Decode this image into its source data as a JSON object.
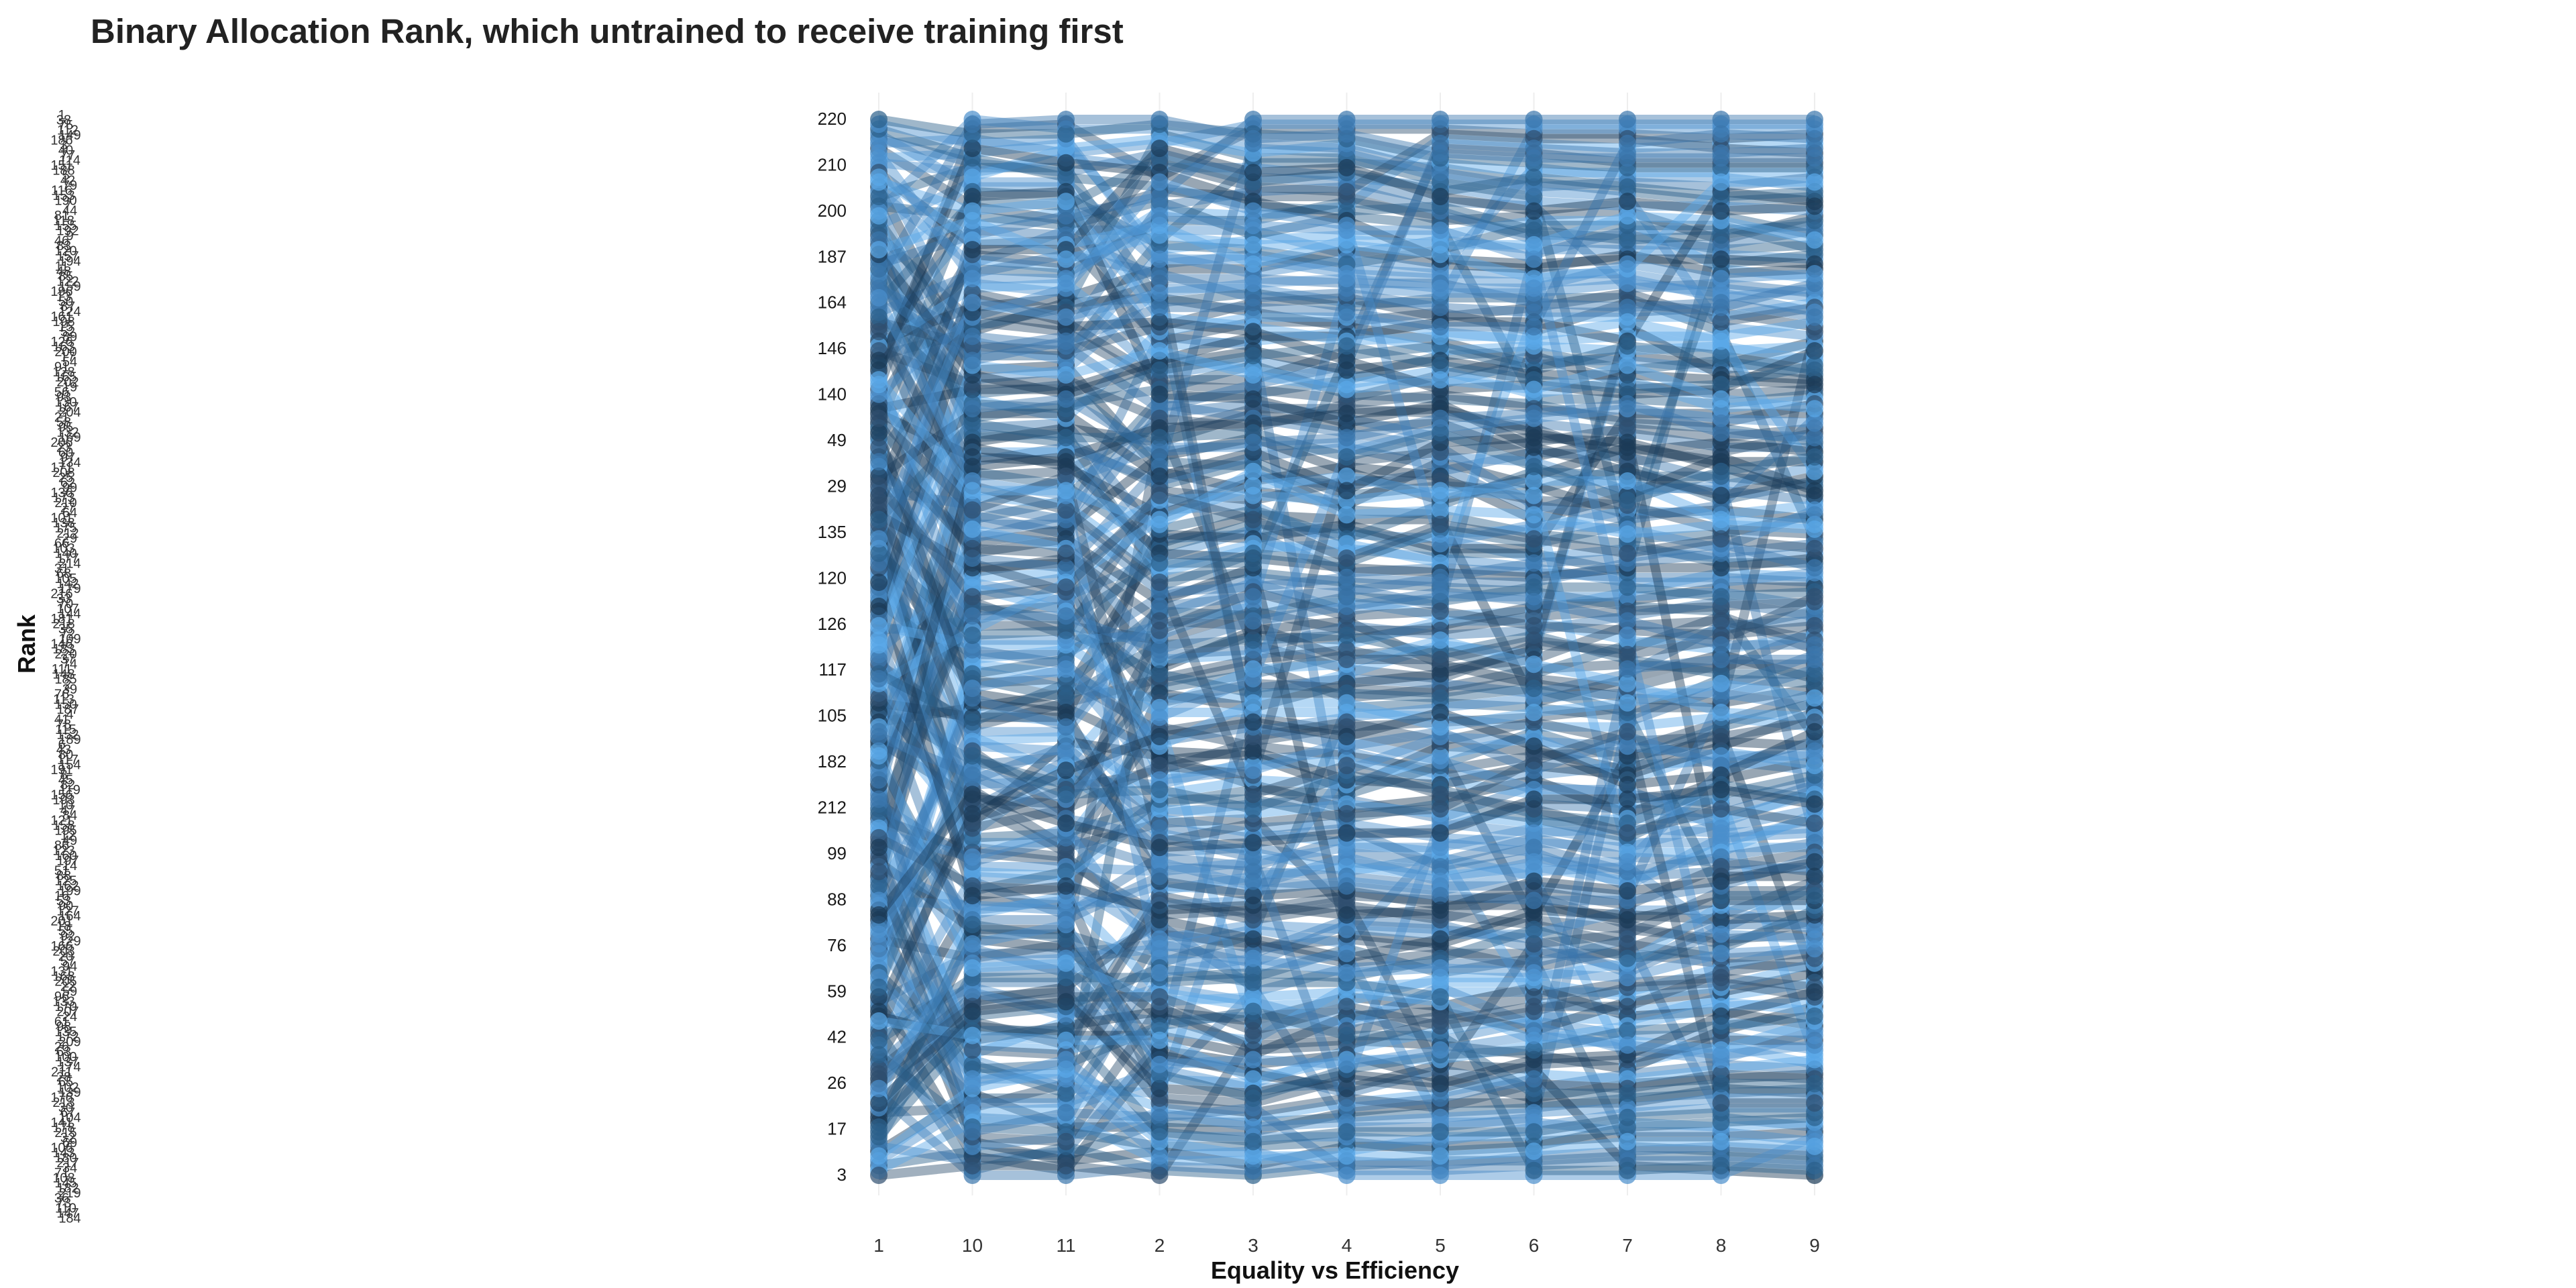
{
  "chart_data": {
    "type": "line",
    "title": "Binary Allocation Rank, which untrained to receive training first",
    "xlabel": "Equality vs Efficiency",
    "ylabel": "Rank",
    "categories": [
      "1",
      "10",
      "11",
      "2",
      "3",
      "4",
      "5",
      "6",
      "7",
      "8",
      "9"
    ],
    "grid": false,
    "legend": "none",
    "series_count": 220,
    "series_colors": [
      "#1b3a57",
      "#2b5f8a",
      "#3a76ad",
      "#4a8fcc",
      "#5aa8e8",
      "#2f4f6f"
    ],
    "rank_labels_visible": [
      "220",
      "210",
      "200",
      "187",
      "164",
      "146",
      "140",
      "49",
      "29",
      "135",
      "120",
      "126",
      "117",
      "105",
      "182",
      "212",
      "99",
      "88",
      "76",
      "59",
      "42",
      "26",
      "17",
      "3"
    ]
  }
}
